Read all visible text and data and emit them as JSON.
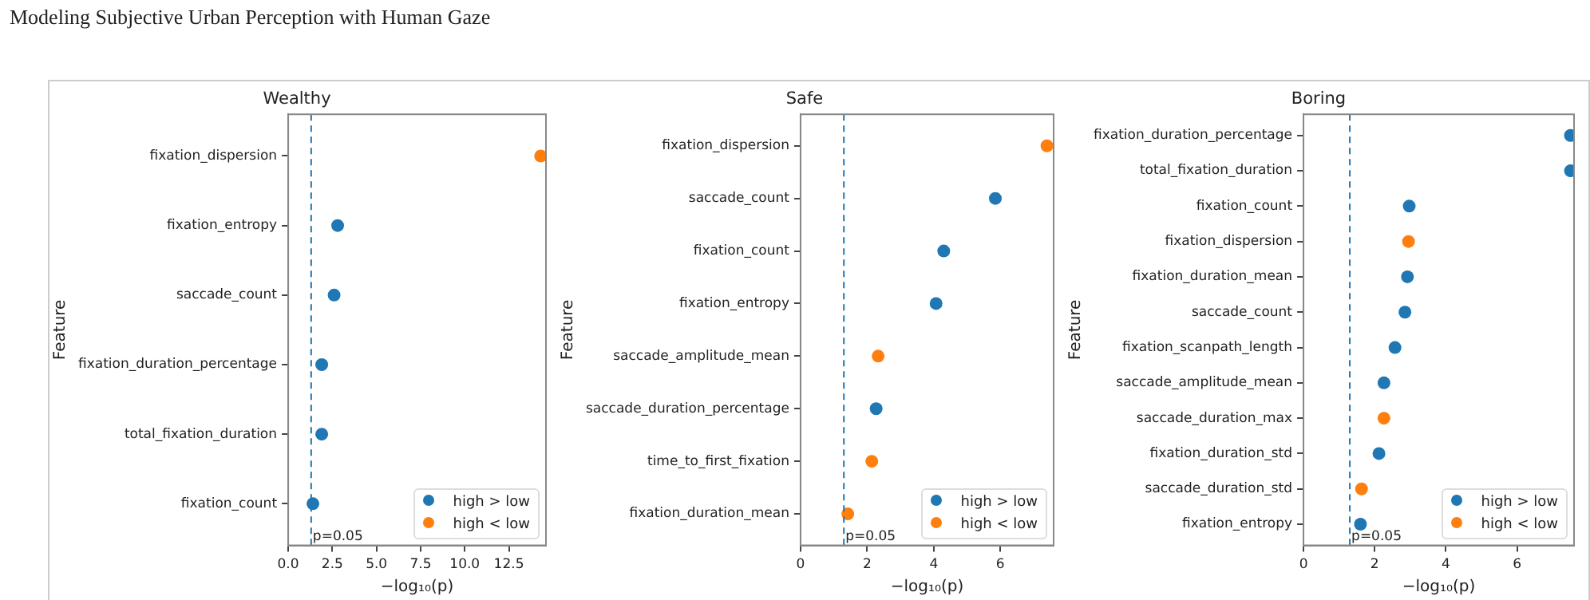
{
  "chart_data": [
    {
      "type": "scatter",
      "orientation": "horizontal",
      "title": "Wealthy",
      "xlabel": "−log₁₀(p)",
      "ylabel": "Feature",
      "annotations": [
        "Modeling Subjective Urban Perception with Human Gaze",
        "p=0.05"
      ],
      "categories": [
        "fixation_dispersion",
        "fixation_entropy",
        "saccade_count",
        "fixation_duration_percentage",
        "total_fixation_duration",
        "fixation_count"
      ],
      "series": [
        {
          "name": "high > low",
          "color": "#1f77b4",
          "values": [
            null,
            2.8,
            2.6,
            1.9,
            1.9,
            1.4
          ]
        },
        {
          "name": "high < low",
          "color": "#ff7f0e",
          "values": [
            14.3,
            null,
            null,
            null,
            null,
            null
          ]
        }
      ],
      "xlim": [
        0,
        14.6
      ],
      "xticks": [
        {
          "value": 0,
          "label": "0.0"
        },
        2.5,
        {
          "value": 5,
          "label": "5.0"
        },
        7.5,
        {
          "value": 10,
          "label": "10.0"
        },
        12.5
      ],
      "ref_lines": [
        {
          "axis": "x",
          "value": 1.301,
          "color": "#1f77b4",
          "line_style": "dashed"
        }
      ],
      "legend": "bottom right",
      "grid": false,
      "marker": "circle"
    },
    {
      "type": "scatter",
      "orientation": "horizontal",
      "title": "Safe",
      "xlabel": "−log₁₀(p)",
      "ylabel": "Feature",
      "annotations": [
        "p=0.05"
      ],
      "categories": [
        "fixation_dispersion",
        "saccade_count",
        "fixation_count",
        "fixation_entropy",
        "saccade_amplitude_mean",
        "saccade_duration_percentage",
        "time_to_first_fixation",
        "fixation_duration_mean"
      ],
      "series": [
        {
          "name": "high > low",
          "color": "#1f77b4",
          "values": [
            null,
            5.85,
            4.3,
            4.07,
            null,
            2.27,
            null,
            null
          ]
        },
        {
          "name": "high < low",
          "color": "#ff7f0e",
          "values": [
            7.4,
            null,
            null,
            null,
            2.33,
            null,
            2.14,
            1.42
          ]
        }
      ],
      "xlim": [
        0,
        7.6
      ],
      "xticks": [
        0,
        2,
        4,
        6
      ],
      "ref_lines": [
        {
          "axis": "x",
          "value": 1.301,
          "color": "#1f77b4",
          "line_style": "dashed"
        }
      ],
      "legend": "bottom right",
      "grid": false,
      "marker": "circle"
    },
    {
      "type": "scatter",
      "orientation": "horizontal",
      "title": "Boring",
      "xlabel": "−log₁₀(p)",
      "ylabel": "Feature",
      "annotations": [
        "p=0.05"
      ],
      "categories": [
        "fixation_duration_percentage",
        "total_fixation_duration",
        "fixation_count",
        "fixation_dispersion",
        "fixation_duration_mean",
        "saccade_count",
        "fixation_scanpath_length",
        "saccade_amplitude_mean",
        "saccade_duration_max",
        "fixation_duration_std",
        "saccade_duration_std",
        "fixation_entropy"
      ],
      "series": [
        {
          "name": "high > low",
          "color": "#1f77b4",
          "values": [
            7.5,
            7.5,
            2.97,
            null,
            2.92,
            2.85,
            2.57,
            2.26,
            null,
            2.12,
            null,
            1.6
          ]
        },
        {
          "name": "high < low",
          "color": "#ff7f0e",
          "values": [
            null,
            null,
            null,
            2.95,
            null,
            null,
            null,
            null,
            2.26,
            null,
            1.63,
            null
          ]
        }
      ],
      "xlim": [
        0,
        7.6
      ],
      "xticks": [
        0,
        2,
        4,
        6
      ],
      "ref_lines": [
        {
          "axis": "x",
          "value": 1.301,
          "color": "#1f77b4",
          "line_style": "dashed"
        }
      ],
      "legend": "bottom right",
      "grid": false,
      "marker": "circle"
    }
  ]
}
